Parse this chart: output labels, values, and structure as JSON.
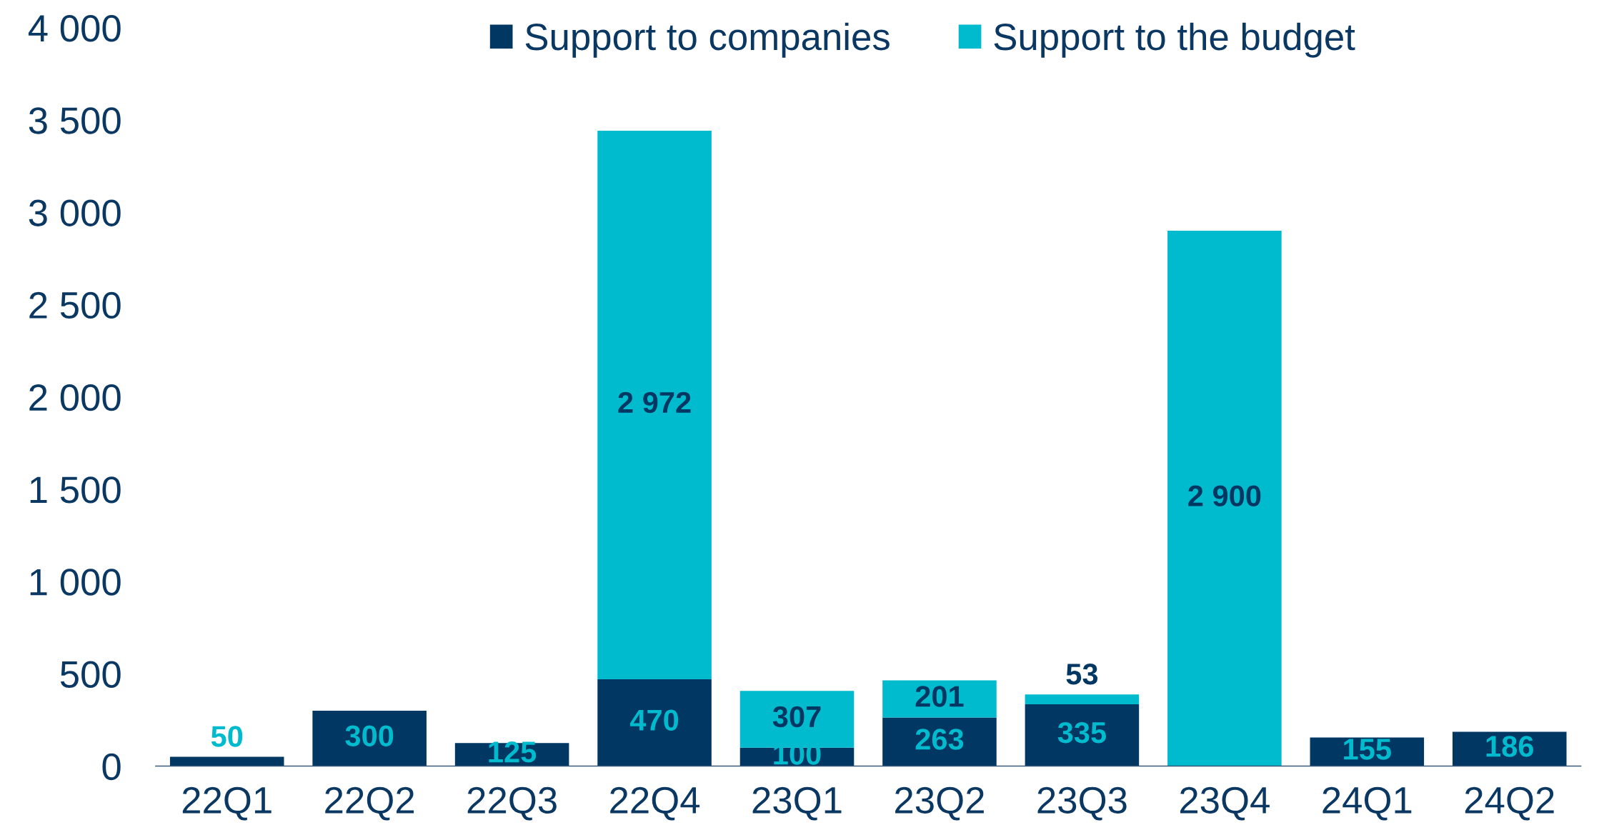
{
  "chart_data": {
    "type": "bar",
    "stacked": true,
    "categories": [
      "22Q1",
      "22Q2",
      "22Q3",
      "22Q4",
      "23Q1",
      "23Q2",
      "23Q3",
      "23Q4",
      "24Q1",
      "24Q2"
    ],
    "series": [
      {
        "name": "Support to companies",
        "color": "#003763",
        "values": [
          50,
          300,
          125,
          470,
          100,
          263,
          335,
          null,
          155,
          186
        ],
        "value_labels": [
          "50",
          "300",
          "125",
          "470",
          "100",
          "263",
          "335",
          null,
          "155",
          "186"
        ]
      },
      {
        "name": "Support to the budget",
        "color": "#00bacd",
        "values": [
          null,
          null,
          null,
          2972,
          307,
          201,
          53,
          2900,
          null,
          null
        ],
        "value_labels": [
          null,
          null,
          null,
          "2 972",
          "307",
          "201",
          "53",
          "2 900",
          null,
          null
        ]
      }
    ],
    "ylim": [
      0,
      4000
    ],
    "yticks": [
      0,
      500,
      {
        "value": 1000,
        "label": "1 000"
      },
      {
        "value": 1500,
        "label": "1 500"
      },
      {
        "value": 2000,
        "label": "2 000"
      },
      {
        "value": 2500,
        "label": "2 500"
      },
      {
        "value": 3000,
        "label": "3 000"
      },
      {
        "value": 3500,
        "label": "3 500"
      },
      {
        "value": 4000,
        "label": "4 000"
      }
    ],
    "grid": false,
    "legend": "top"
  }
}
